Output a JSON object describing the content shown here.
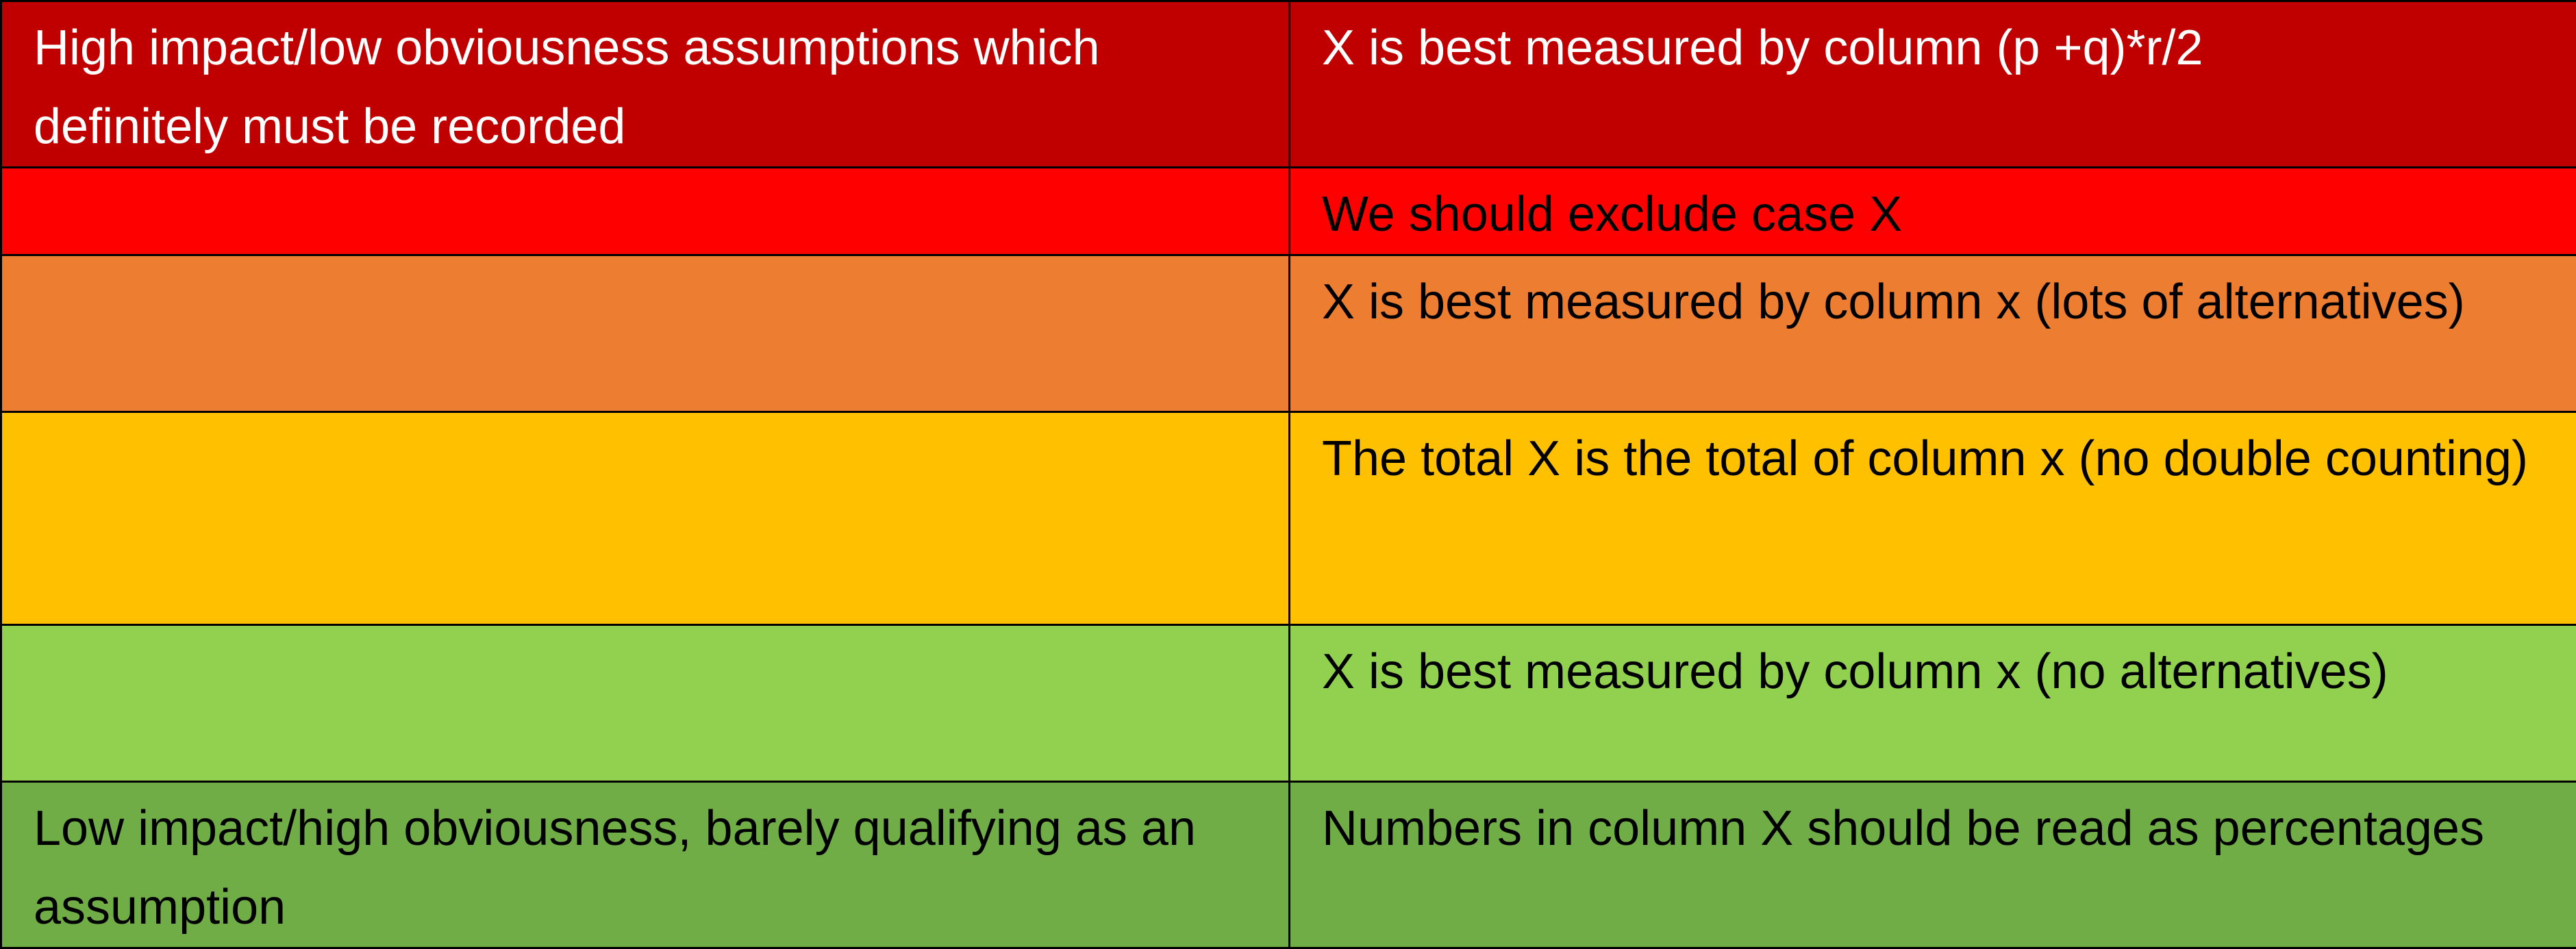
{
  "rows": [
    {
      "left": "High impact/low obviousness assumptions which definitely must be recorded",
      "right": "X is best measured by column (p +q)*r/2",
      "color": "#c00000",
      "text_color": "#ffffff"
    },
    {
      "left": "",
      "right": "We should exclude case X",
      "color": "#ff0000",
      "text_color": "#000000"
    },
    {
      "left": "",
      "right": "X is best measured by column x (lots of alternatives)",
      "color": "#ed7d31",
      "text_color": "#000000"
    },
    {
      "left": "",
      "right": "The total X is the total of column x (no double counting)",
      "color": "#ffc000",
      "text_color": "#000000"
    },
    {
      "left": "",
      "right": "X is best measured by column x (no alternatives)",
      "color": "#92d050",
      "text_color": "#000000"
    },
    {
      "left": "Low impact/high obviousness, barely qualifying as an assumption",
      "right": "Numbers in column X should be read as percentages",
      "color": "#70ad47",
      "text_color": "#000000"
    }
  ]
}
